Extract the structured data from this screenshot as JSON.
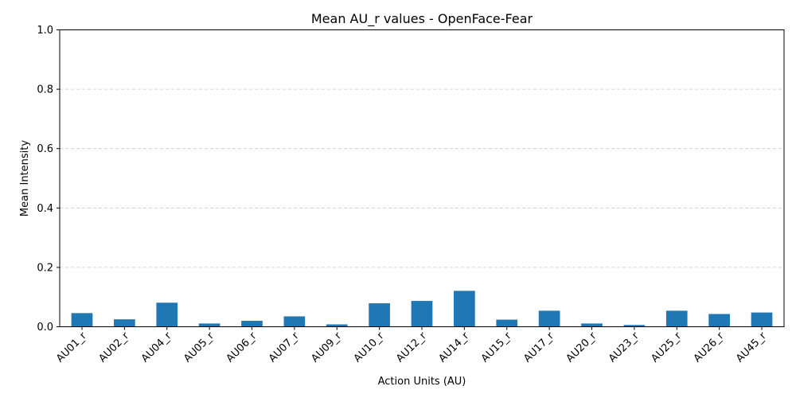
{
  "chart_data": {
    "type": "bar",
    "title": "Mean AU_r values - OpenFace-Fear",
    "xlabel": "Action Units (AU)",
    "ylabel": "Mean Intensity",
    "ylim": [
      0,
      1.0
    ],
    "yticks": [
      0.0,
      0.2,
      0.4,
      0.6,
      0.8,
      1.0
    ],
    "ytick_labels": [
      "0.0",
      "0.2",
      "0.4",
      "0.6",
      "0.8",
      "1.0"
    ],
    "grid": "y-dashed",
    "bar_color": "#1f77b4",
    "categories": [
      "AU01_r",
      "AU02_r",
      "AU04_r",
      "AU05_r",
      "AU06_r",
      "AU07_r",
      "AU09_r",
      "AU10_r",
      "AU12_r",
      "AU14_r",
      "AU15_r",
      "AU17_r",
      "AU20_r",
      "AU23_r",
      "AU25_r",
      "AU26_r",
      "AU45_r"
    ],
    "values": [
      0.046,
      0.025,
      0.081,
      0.011,
      0.02,
      0.035,
      0.008,
      0.079,
      0.087,
      0.121,
      0.024,
      0.054,
      0.011,
      0.006,
      0.054,
      0.043,
      0.048
    ]
  }
}
